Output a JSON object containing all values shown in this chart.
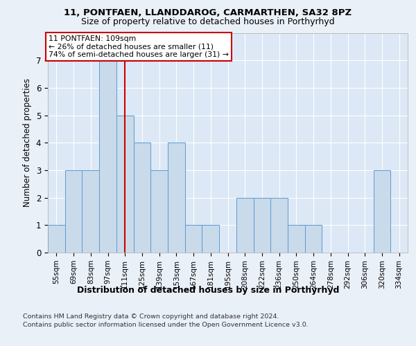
{
  "title1": "11, PONTFAEN, LLANDDAROG, CARMARTHEN, SA32 8PZ",
  "title2": "Size of property relative to detached houses in Porthyrhyd",
  "xlabel": "Distribution of detached houses by size in Porthyrhyd",
  "ylabel": "Number of detached properties",
  "categories": [
    "55sqm",
    "69sqm",
    "83sqm",
    "97sqm",
    "111sqm",
    "125sqm",
    "139sqm",
    "153sqm",
    "167sqm",
    "181sqm",
    "195sqm",
    "208sqm",
    "222sqm",
    "236sqm",
    "250sqm",
    "264sqm",
    "278sqm",
    "292sqm",
    "306sqm",
    "320sqm",
    "334sqm"
  ],
  "values": [
    1,
    3,
    3,
    7,
    5,
    4,
    3,
    4,
    1,
    1,
    0,
    2,
    2,
    2,
    1,
    1,
    0,
    0,
    0,
    3,
    0
  ],
  "bar_color": "#c9daea",
  "bar_edge_color": "#5b9bd5",
  "highlight_index": 4,
  "highlight_line_color": "#cc0000",
  "annotation_text": "11 PONTFAEN: 109sqm\n← 26% of detached houses are smaller (11)\n74% of semi-detached houses are larger (31) →",
  "annotation_box_color": "#ffffff",
  "annotation_box_edge": "#cc0000",
  "ylim": [
    0,
    8
  ],
  "yticks": [
    0,
    1,
    2,
    3,
    4,
    5,
    6,
    7
  ],
  "footer1": "Contains HM Land Registry data © Crown copyright and database right 2024.",
  "footer2": "Contains public sector information licensed under the Open Government Licence v3.0.",
  "bg_color": "#eaf0f8",
  "plot_bg_color": "#dce8f5"
}
